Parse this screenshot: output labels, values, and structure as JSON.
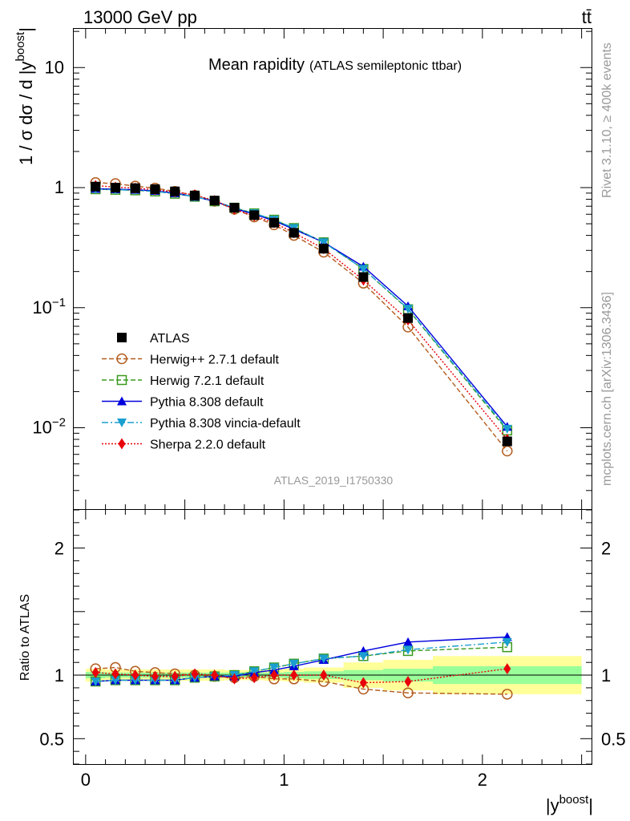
{
  "header": {
    "energy_label": "13000 GeV pp",
    "process_label": "tt̄"
  },
  "side_labels": {
    "rivet": "Rivet 3.1.10, ≥ 400k events",
    "mcplots": "mcplots.cern.ch [arXiv:1306.3436]"
  },
  "chart_data": [
    {
      "type": "line",
      "panel": "main",
      "title": "Mean rapidity",
      "subtitle": "(ATLAS semileptonic ttbar)",
      "ylabel": "1 / σ dσ / d |y^boost|",
      "ylabel_parts": {
        "main": "1 / σ dσ / d |y",
        "sup": "boost",
        "end": "|"
      },
      "analysis_id": "ATLAS_2019_I1750330",
      "yscale": "log",
      "ylim": [
        0.0021,
        21
      ],
      "xlim": [
        -0.06,
        2.55
      ],
      "y_ticks": [
        {
          "value": 10,
          "label": "10"
        },
        {
          "value": 1,
          "label": "1"
        },
        {
          "value": 0.1,
          "label": "10",
          "exp": "−1"
        },
        {
          "value": 0.01,
          "label": "10",
          "exp": "−2"
        }
      ],
      "legend_position": "lower-left",
      "x": [
        0.05,
        0.15,
        0.25,
        0.35,
        0.45,
        0.55,
        0.65,
        0.75,
        0.85,
        0.95,
        1.05,
        1.2,
        1.4,
        1.625,
        2.125
      ],
      "series": [
        {
          "name": "ATLAS",
          "color": "#000000",
          "marker": "square-filled",
          "line": "none",
          "values": [
            1.02,
            1.0,
            0.99,
            0.97,
            0.93,
            0.86,
            0.78,
            0.68,
            0.59,
            0.51,
            0.42,
            0.31,
            0.18,
            0.082,
            0.0077
          ]
        },
        {
          "name": "Herwig++ 2.7.1 default",
          "color": "#b35c1e",
          "marker": "circle-open",
          "line": "dashed",
          "values": [
            1.1,
            1.08,
            1.03,
            0.99,
            0.93,
            0.86,
            0.77,
            0.66,
            0.57,
            0.49,
            0.4,
            0.29,
            0.16,
            0.069,
            0.0064
          ]
        },
        {
          "name": "Herwig 7.2.1 default",
          "color": "#3a9a1e",
          "marker": "square-open",
          "line": "dashed",
          "values": [
            0.97,
            0.96,
            0.95,
            0.93,
            0.89,
            0.84,
            0.77,
            0.68,
            0.61,
            0.54,
            0.46,
            0.35,
            0.21,
            0.097,
            0.0095
          ]
        },
        {
          "name": "Pythia 8.308 default",
          "color": "#0000dd",
          "marker": "triangle-up-filled",
          "line": "solid",
          "values": [
            0.98,
            0.97,
            0.96,
            0.94,
            0.9,
            0.84,
            0.77,
            0.67,
            0.6,
            0.53,
            0.45,
            0.35,
            0.22,
            0.103,
            0.0102
          ]
        },
        {
          "name": "Pythia 8.308 vincia-default",
          "color": "#1a9fd0",
          "marker": "triangle-down-filled",
          "line": "dashdot",
          "values": [
            0.97,
            0.96,
            0.95,
            0.93,
            0.89,
            0.84,
            0.77,
            0.68,
            0.61,
            0.54,
            0.46,
            0.35,
            0.21,
            0.098,
            0.0098
          ]
        },
        {
          "name": "Sherpa 2.2.0 default",
          "color": "#e8000a",
          "marker": "diamond-filled",
          "line": "dotted",
          "values": [
            1.04,
            1.01,
            0.99,
            0.96,
            0.92,
            0.87,
            0.78,
            0.66,
            0.58,
            0.51,
            0.42,
            0.31,
            0.17,
            0.079,
            0.008
          ]
        }
      ]
    },
    {
      "type": "line",
      "panel": "ratio",
      "ylabel": "Ratio to ATLAS",
      "xlabel": "|y^boost|",
      "xlabel_parts": {
        "main": "|y",
        "sup": "boost",
        "end": "|"
      },
      "ylim": [
        0.3,
        2.3
      ],
      "xlim": [
        -0.06,
        2.55
      ],
      "x_ticks": [
        {
          "value": 0,
          "label": "0"
        },
        {
          "value": 1,
          "label": "1"
        },
        {
          "value": 2,
          "label": "2"
        }
      ],
      "y_ticks": [
        {
          "value": 2,
          "label": "2"
        },
        {
          "value": 1,
          "label": "1"
        },
        {
          "value": 0.5,
          "label": "0.5"
        }
      ],
      "bins": [
        {
          "lo": 0.0,
          "hi": 0.1,
          "stat": 0.025,
          "total": 0.05
        },
        {
          "lo": 0.1,
          "hi": 0.2,
          "stat": 0.02,
          "total": 0.045
        },
        {
          "lo": 0.2,
          "hi": 0.3,
          "stat": 0.02,
          "total": 0.045
        },
        {
          "lo": 0.3,
          "hi": 0.4,
          "stat": 0.02,
          "total": 0.045
        },
        {
          "lo": 0.4,
          "hi": 0.5,
          "stat": 0.02,
          "total": 0.045
        },
        {
          "lo": 0.5,
          "hi": 0.6,
          "stat": 0.02,
          "total": 0.045
        },
        {
          "lo": 0.6,
          "hi": 0.7,
          "stat": 0.02,
          "total": 0.045
        },
        {
          "lo": 0.7,
          "hi": 0.8,
          "stat": 0.02,
          "total": 0.04
        },
        {
          "lo": 0.8,
          "hi": 0.9,
          "stat": 0.02,
          "total": 0.04
        },
        {
          "lo": 0.9,
          "hi": 1.0,
          "stat": 0.02,
          "total": 0.045
        },
        {
          "lo": 1.0,
          "hi": 1.1,
          "stat": 0.025,
          "total": 0.05
        },
        {
          "lo": 1.1,
          "hi": 1.3,
          "stat": 0.03,
          "total": 0.06
        },
        {
          "lo": 1.3,
          "hi": 1.5,
          "stat": 0.04,
          "total": 0.1
        },
        {
          "lo": 1.5,
          "hi": 1.75,
          "stat": 0.05,
          "total": 0.12
        },
        {
          "lo": 1.75,
          "hi": 2.5,
          "stat": 0.07,
          "total": 0.15
        }
      ],
      "series": [
        {
          "name": "Herwig++ 2.7.1 default",
          "values": [
            1.05,
            1.06,
            1.03,
            1.02,
            1.01,
            1.0,
            0.99,
            0.98,
            0.99,
            0.97,
            0.97,
            0.95,
            0.89,
            0.86,
            0.85
          ]
        },
        {
          "name": "Herwig 7.2.1 default",
          "values": [
            0.95,
            0.96,
            0.96,
            0.96,
            0.96,
            0.98,
            0.99,
            1.0,
            1.03,
            1.06,
            1.09,
            1.13,
            1.15,
            1.19,
            1.22
          ]
        },
        {
          "name": "Pythia 8.308 default",
          "values": [
            0.95,
            0.96,
            0.96,
            0.96,
            0.96,
            0.98,
            0.99,
            0.99,
            1.02,
            1.04,
            1.07,
            1.12,
            1.19,
            1.26,
            1.3
          ]
        },
        {
          "name": "Pythia 8.308 vincia-default",
          "values": [
            0.95,
            0.96,
            0.96,
            0.96,
            0.96,
            0.98,
            0.99,
            1.0,
            1.03,
            1.06,
            1.09,
            1.13,
            1.15,
            1.2,
            1.26
          ]
        },
        {
          "name": "Sherpa 2.2.0 default",
          "values": [
            1.02,
            1.01,
            1.0,
            0.99,
            0.99,
            1.01,
            1.0,
            0.97,
            0.98,
            1.0,
            1.0,
            1.0,
            0.94,
            0.95,
            1.05
          ]
        }
      ]
    }
  ]
}
